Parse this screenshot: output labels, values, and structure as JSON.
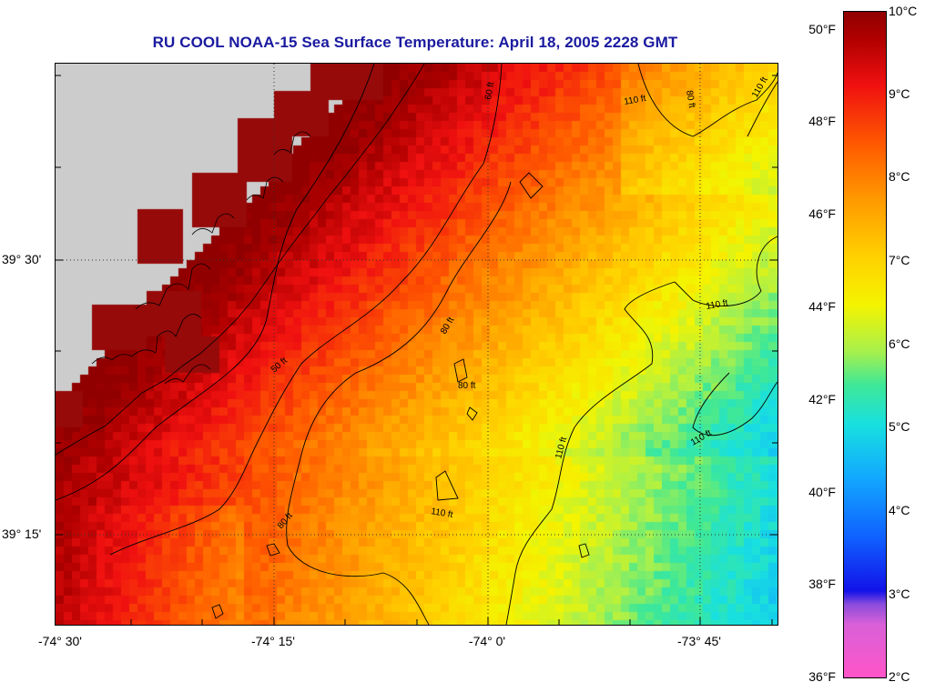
{
  "title": "RU COOL  NOAA-15  Sea Surface Temperature:  April 18, 2005 2228 GMT",
  "x_axis": {
    "ticks": [
      "-74° 30'",
      "-74° 15'",
      "-74° 0'",
      "-73° 45'"
    ]
  },
  "y_axis": {
    "ticks": [
      "39° 30'",
      "39° 15'"
    ]
  },
  "colorbar": {
    "fahrenheit_labels": [
      "50°F",
      "48°F",
      "46°F",
      "44°F",
      "42°F",
      "40°F",
      "38°F",
      "36°F"
    ],
    "celsius_labels": [
      "10°C",
      "9°C",
      "8°C",
      "7°C",
      "6°C",
      "5°C",
      "4°C",
      "3°C",
      "2°C"
    ]
  },
  "contour_labels": {
    "label_110a": "110 ft",
    "label_80a": "80 ft",
    "label_110b": "110 ft",
    "label_60a": "60 ft",
    "label_80b": "80 ft",
    "label_110c": "110 ft",
    "label_50": "50 ft",
    "label_80c": "80 ft",
    "label_110d": "110 ft",
    "label_110e": "110 ft",
    "label_110f": "110 ft",
    "label_80d": "80 ft"
  },
  "colors": {
    "land": "#cccccc",
    "title": "#1a1aa0"
  }
}
